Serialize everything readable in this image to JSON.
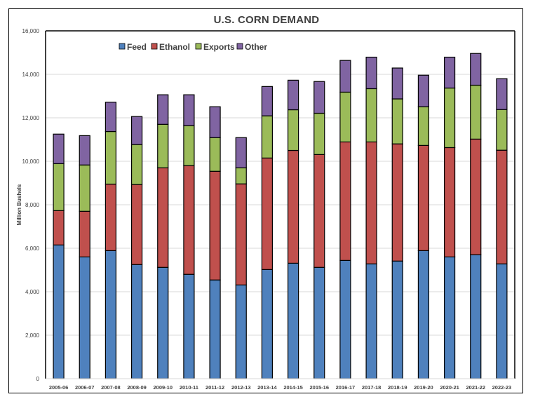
{
  "chart_data": {
    "type": "bar",
    "stacked": true,
    "title": "U.S. CORN DEMAND",
    "xlabel": "",
    "ylabel": "Million Bushels",
    "ylim": [
      0,
      16000
    ],
    "yticks": [
      0,
      2000,
      4000,
      6000,
      8000,
      10000,
      12000,
      14000,
      16000
    ],
    "ytick_labels": [
      "0",
      "2,000",
      "4,000",
      "6,000",
      "8,000",
      "10,000",
      "12,000",
      "14,000",
      "16,000"
    ],
    "grid": true,
    "legend_position": "top-left",
    "categories": [
      "2005-06",
      "2006-07",
      "2007-08",
      "2008-09",
      "2009-10",
      "2010-11",
      "2011-12",
      "2012-13",
      "2013-14",
      "2014-15",
      "2015-16",
      "2016-17",
      "2017-18",
      "2018-19",
      "2019-20",
      "2020-21",
      "2021-22",
      "2022-23"
    ],
    "series": [
      {
        "name": "Feed",
        "color": "#4F81BD",
        "values": [
          6150,
          5600,
          5890,
          5250,
          5120,
          4800,
          4540,
          4310,
          5020,
          5310,
          5120,
          5440,
          5280,
          5410,
          5890,
          5600,
          5700,
          5280
        ]
      },
      {
        "name": "Ethanol",
        "color": "#C0504D",
        "values": [
          1580,
          2100,
          3060,
          3680,
          4580,
          5000,
          5000,
          4650,
          5130,
          5190,
          5190,
          5450,
          5610,
          5390,
          4840,
          5030,
          5320,
          5230
        ]
      },
      {
        "name": "Exports",
        "color": "#9BBB59",
        "values": [
          2160,
          2130,
          2420,
          1840,
          2000,
          1840,
          1550,
          740,
          1940,
          1870,
          1900,
          2290,
          2450,
          2070,
          1780,
          2740,
          2480,
          1870
        ]
      },
      {
        "name": "Other",
        "color": "#8064A2",
        "values": [
          1360,
          1350,
          1350,
          1290,
          1360,
          1420,
          1420,
          1390,
          1350,
          1360,
          1460,
          1460,
          1450,
          1420,
          1450,
          1420,
          1460,
          1420
        ]
      }
    ]
  }
}
